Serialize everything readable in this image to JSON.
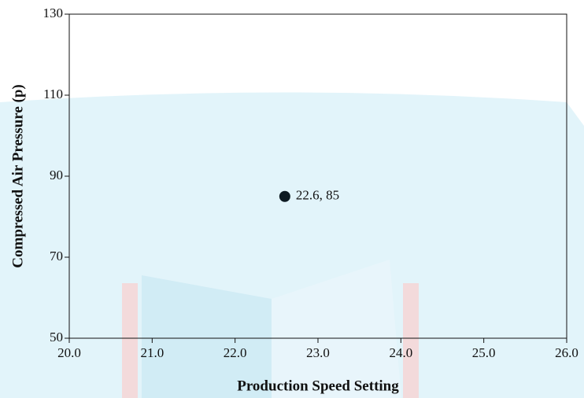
{
  "chart_data": {
    "type": "scatter",
    "x_label": "Production Speed Setting",
    "y_label": "Compressed Air Pressure (p)",
    "series": [
      {
        "x": [
          22.6
        ],
        "values": [
          85
        ],
        "value_labels": [
          "22.6, 85"
        ],
        "color": "#0d1a22"
      }
    ],
    "xlim": [
      20,
      26
    ],
    "xticks": [
      {
        "value": 20,
        "label": "20.0"
      },
      {
        "value": 21,
        "label": "21.0"
      },
      {
        "value": 22,
        "label": "22.0"
      },
      {
        "value": 23,
        "label": "23.0"
      },
      {
        "value": 24,
        "label": "24.0"
      },
      {
        "value": 25,
        "label": "25.0"
      },
      {
        "value": 26,
        "label": "26.0"
      }
    ],
    "ylim": [
      50,
      130
    ],
    "yticks": [
      50,
      70,
      90,
      110,
      130
    ],
    "grid": false
  }
}
